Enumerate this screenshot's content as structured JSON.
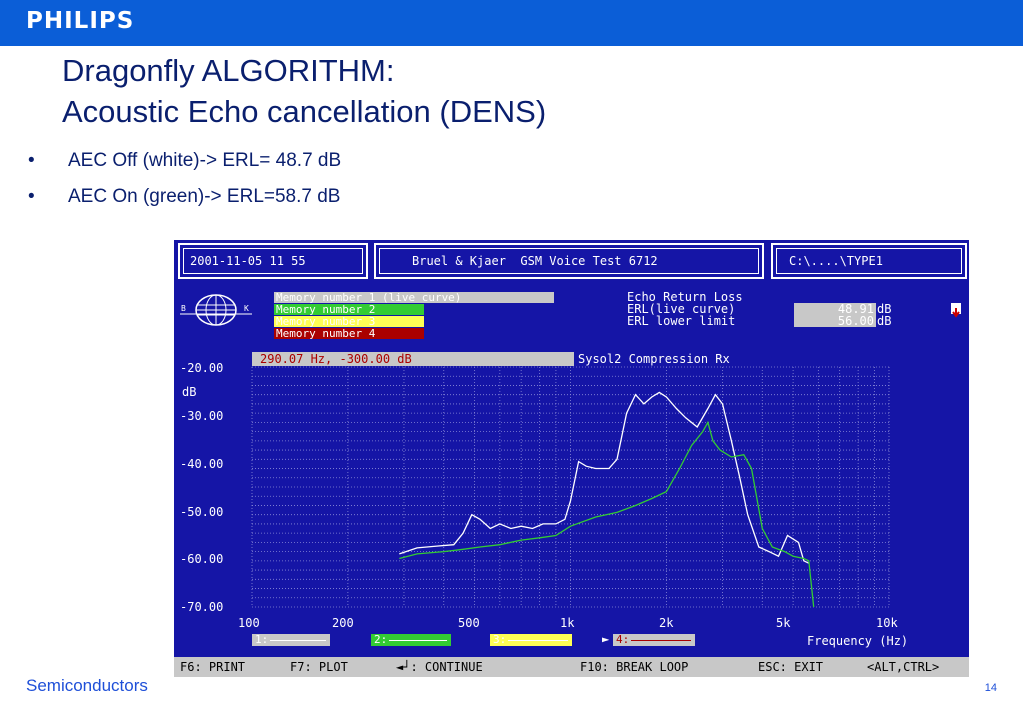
{
  "slide": {
    "logo": "PHILIPS",
    "title_line1": "Dragonfly ALGORITHM:",
    "title_line2": "Acoustic Echo cancellation (DENS)",
    "bullets": [
      "AEC Off  (white)->  ERL= 48.7 dB",
      "AEC On (green)->  ERL=58.7 dB"
    ],
    "footer_left": "Semiconductors",
    "page_number": "14"
  },
  "colors": {
    "philips_blue": "#0b5ed7",
    "screen_blue": "#1515a6",
    "title_navy": "#0a1f6e",
    "curve_white": "#ffffff",
    "curve_green": "#33cc33",
    "memory_red": "#aa0000",
    "memory_yellow": "#ffff55"
  },
  "instrument": {
    "header_datetime": "2001-11-05 11 55",
    "header_title": "Bruel & Kjaer  GSM Voice Test 6712",
    "header_path": "C:\\....\\TYPE1",
    "logo_letters": {
      "left": "B",
      "right": "K"
    },
    "memories": [
      {
        "label": "Memory number 1 (live curve)",
        "color": "#c8c8c8",
        "text_color": "#ffffff"
      },
      {
        "label": "Memory number 2",
        "color": "#33cc33",
        "text_color": "#ffffff"
      },
      {
        "label": "Memory number 3",
        "color": "#ffff55",
        "text_color": "#ffffff"
      },
      {
        "label": "Memory number 4",
        "color": "#aa0000",
        "text_color": "#ffffff"
      }
    ],
    "erl_title": "Echo Return Loss",
    "erl_live_label": "ERL(live curve)",
    "erl_live_value": "48.91",
    "erl_lower_label": "ERL lower limit",
    "erl_lower_value": "56.00",
    "erl_unit": "dB",
    "alert_icon": "down-arrow-icon",
    "cursor_readout": "290.07 Hz, -300.00 dB",
    "plot_title": "Sysol2 Compression Rx",
    "legend_items": [
      {
        "label": "1:",
        "color": "#c8c8c8"
      },
      {
        "label": "2:",
        "color": "#33cc33"
      },
      {
        "label": "3:",
        "color": "#ffff55"
      },
      {
        "label": "4:",
        "color": "#aa0000"
      }
    ],
    "selected_marker": "►",
    "status_items": [
      "F6: PRINT",
      "F7: PLOT",
      "◄┘: CONTINUE",
      "F10: BREAK LOOP",
      "ESC: EXIT",
      "<ALT,CTRL>"
    ]
  },
  "chart_data": {
    "type": "line",
    "title": "Sysol2 Compression Rx",
    "xlabel": "Frequency (Hz)",
    "ylabel": "dB",
    "x_scale": "log",
    "xlim": [
      100,
      10000
    ],
    "ylim": [
      -70,
      -18
    ],
    "x_ticks": [
      100,
      200,
      500,
      1000,
      2000,
      5000,
      10000
    ],
    "x_tick_labels": [
      "100",
      "200",
      "500",
      "1k",
      "2k",
      "5k",
      "10k"
    ],
    "y_ticks": [
      -20,
      -30,
      -40,
      -50,
      -60,
      -70
    ],
    "y_tick_labels": [
      "-20.00",
      "-30.00",
      "-40.00",
      "-50.00",
      "-60.00",
      "-70.00"
    ],
    "grid": true,
    "series": [
      {
        "color": "#ffffff",
        "points": [
          [
            290,
            -58.5
          ],
          [
            330,
            -57.2
          ],
          [
            380,
            -56.8
          ],
          [
            430,
            -56.5
          ],
          [
            460,
            -54
          ],
          [
            490,
            -50
          ],
          [
            520,
            -51
          ],
          [
            560,
            -53
          ],
          [
            600,
            -52
          ],
          [
            650,
            -53
          ],
          [
            700,
            -52.5
          ],
          [
            760,
            -53
          ],
          [
            820,
            -52
          ],
          [
            900,
            -52
          ],
          [
            960,
            -51
          ],
          [
            1000,
            -47
          ],
          [
            1060,
            -38.5
          ],
          [
            1120,
            -39.5
          ],
          [
            1200,
            -40
          ],
          [
            1320,
            -40
          ],
          [
            1400,
            -38
          ],
          [
            1500,
            -28
          ],
          [
            1600,
            -24
          ],
          [
            1700,
            -26
          ],
          [
            1800,
            -24.5
          ],
          [
            1900,
            -23.5
          ],
          [
            2000,
            -24.5
          ],
          [
            2150,
            -27
          ],
          [
            2300,
            -29
          ],
          [
            2500,
            -31
          ],
          [
            2700,
            -27
          ],
          [
            2850,
            -24
          ],
          [
            3000,
            -26
          ],
          [
            3200,
            -34
          ],
          [
            3400,
            -42
          ],
          [
            3600,
            -50
          ],
          [
            3900,
            -57
          ],
          [
            4200,
            -58
          ],
          [
            4500,
            -59
          ],
          [
            4800,
            -54.5
          ],
          [
            5200,
            -56
          ],
          [
            5400,
            -60
          ],
          [
            5600,
            -60.5
          ]
        ]
      },
      {
        "color": "#33cc33",
        "points": [
          [
            290,
            -59.5
          ],
          [
            330,
            -58.5
          ],
          [
            400,
            -58
          ],
          [
            460,
            -57.5
          ],
          [
            520,
            -57
          ],
          [
            600,
            -56.5
          ],
          [
            700,
            -55.5
          ],
          [
            800,
            -55
          ],
          [
            900,
            -54.5
          ],
          [
            1000,
            -52.5
          ],
          [
            1200,
            -50.5
          ],
          [
            1400,
            -49.5
          ],
          [
            1600,
            -48
          ],
          [
            1800,
            -46.5
          ],
          [
            2000,
            -45
          ],
          [
            2200,
            -40
          ],
          [
            2400,
            -35
          ],
          [
            2600,
            -32
          ],
          [
            2700,
            -30
          ],
          [
            2800,
            -34
          ],
          [
            2950,
            -36
          ],
          [
            3200,
            -37.5
          ],
          [
            3500,
            -37
          ],
          [
            3700,
            -40
          ],
          [
            4000,
            -53
          ],
          [
            4300,
            -57
          ],
          [
            4700,
            -58
          ],
          [
            5000,
            -59
          ],
          [
            5400,
            -59.5
          ],
          [
            5600,
            -60
          ],
          [
            5800,
            -70
          ]
        ]
      }
    ]
  }
}
